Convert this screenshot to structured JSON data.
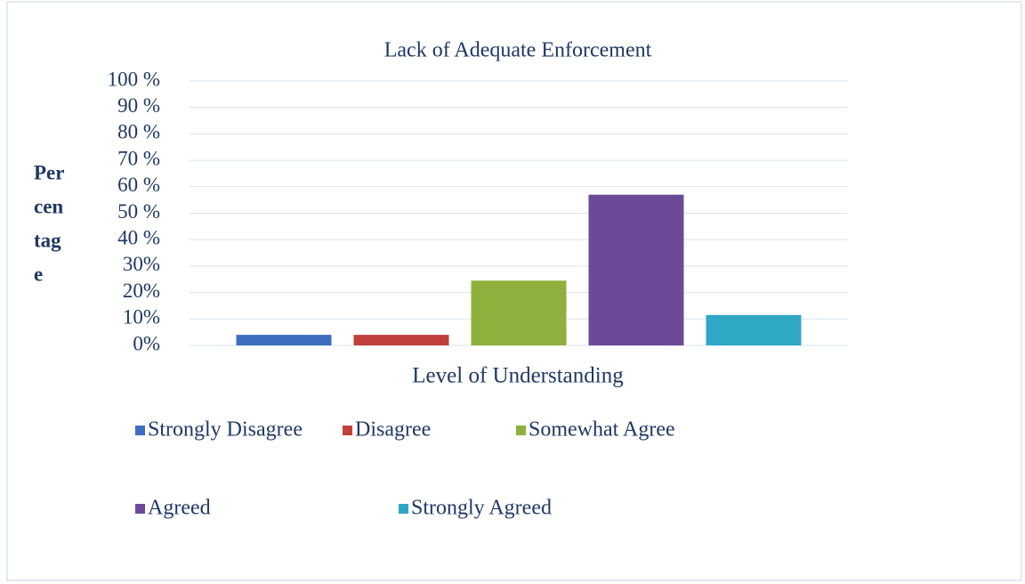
{
  "chart_data": {
    "type": "bar",
    "title": "Lack of Adequate Enforcement",
    "y_label": [
      "Per",
      "cen",
      "tag",
      "e"
    ],
    "x_label": "Level of Understanding",
    "categories": [
      null
    ],
    "series": [
      {
        "name": "Strongly Disagree",
        "color": "#3e6dbf",
        "values": [
          4
        ]
      },
      {
        "name": "Disagree",
        "color": "#c0413b",
        "values": [
          4
        ]
      },
      {
        "name": "Somewhat Agree",
        "color": "#8db13c",
        "values": [
          24.5
        ]
      },
      {
        "name": "Agreed",
        "color": "#6c4a98",
        "values": [
          57
        ]
      },
      {
        "name": "Strongly Agreed",
        "color": "#2fa8c6",
        "values": [
          11.5
        ]
      }
    ],
    "ylim": [
      0,
      100
    ],
    "yticks": [
      {
        "value": 0,
        "label": "0%"
      },
      {
        "value": 10,
        "label": "10%"
      },
      {
        "value": 20,
        "label": "20%"
      },
      {
        "value": 30,
        "label": "30%"
      },
      {
        "value": 40,
        "label": "40 %"
      },
      {
        "value": 50,
        "label": "50 %"
      },
      {
        "value": 60,
        "label": "60 %"
      },
      {
        "value": 70,
        "label": "70 %"
      },
      {
        "value": 80,
        "label": "80 %"
      },
      {
        "value": 90,
        "label": "90 %"
      },
      {
        "value": 100,
        "label": "100 %"
      }
    ],
    "grid": true
  }
}
